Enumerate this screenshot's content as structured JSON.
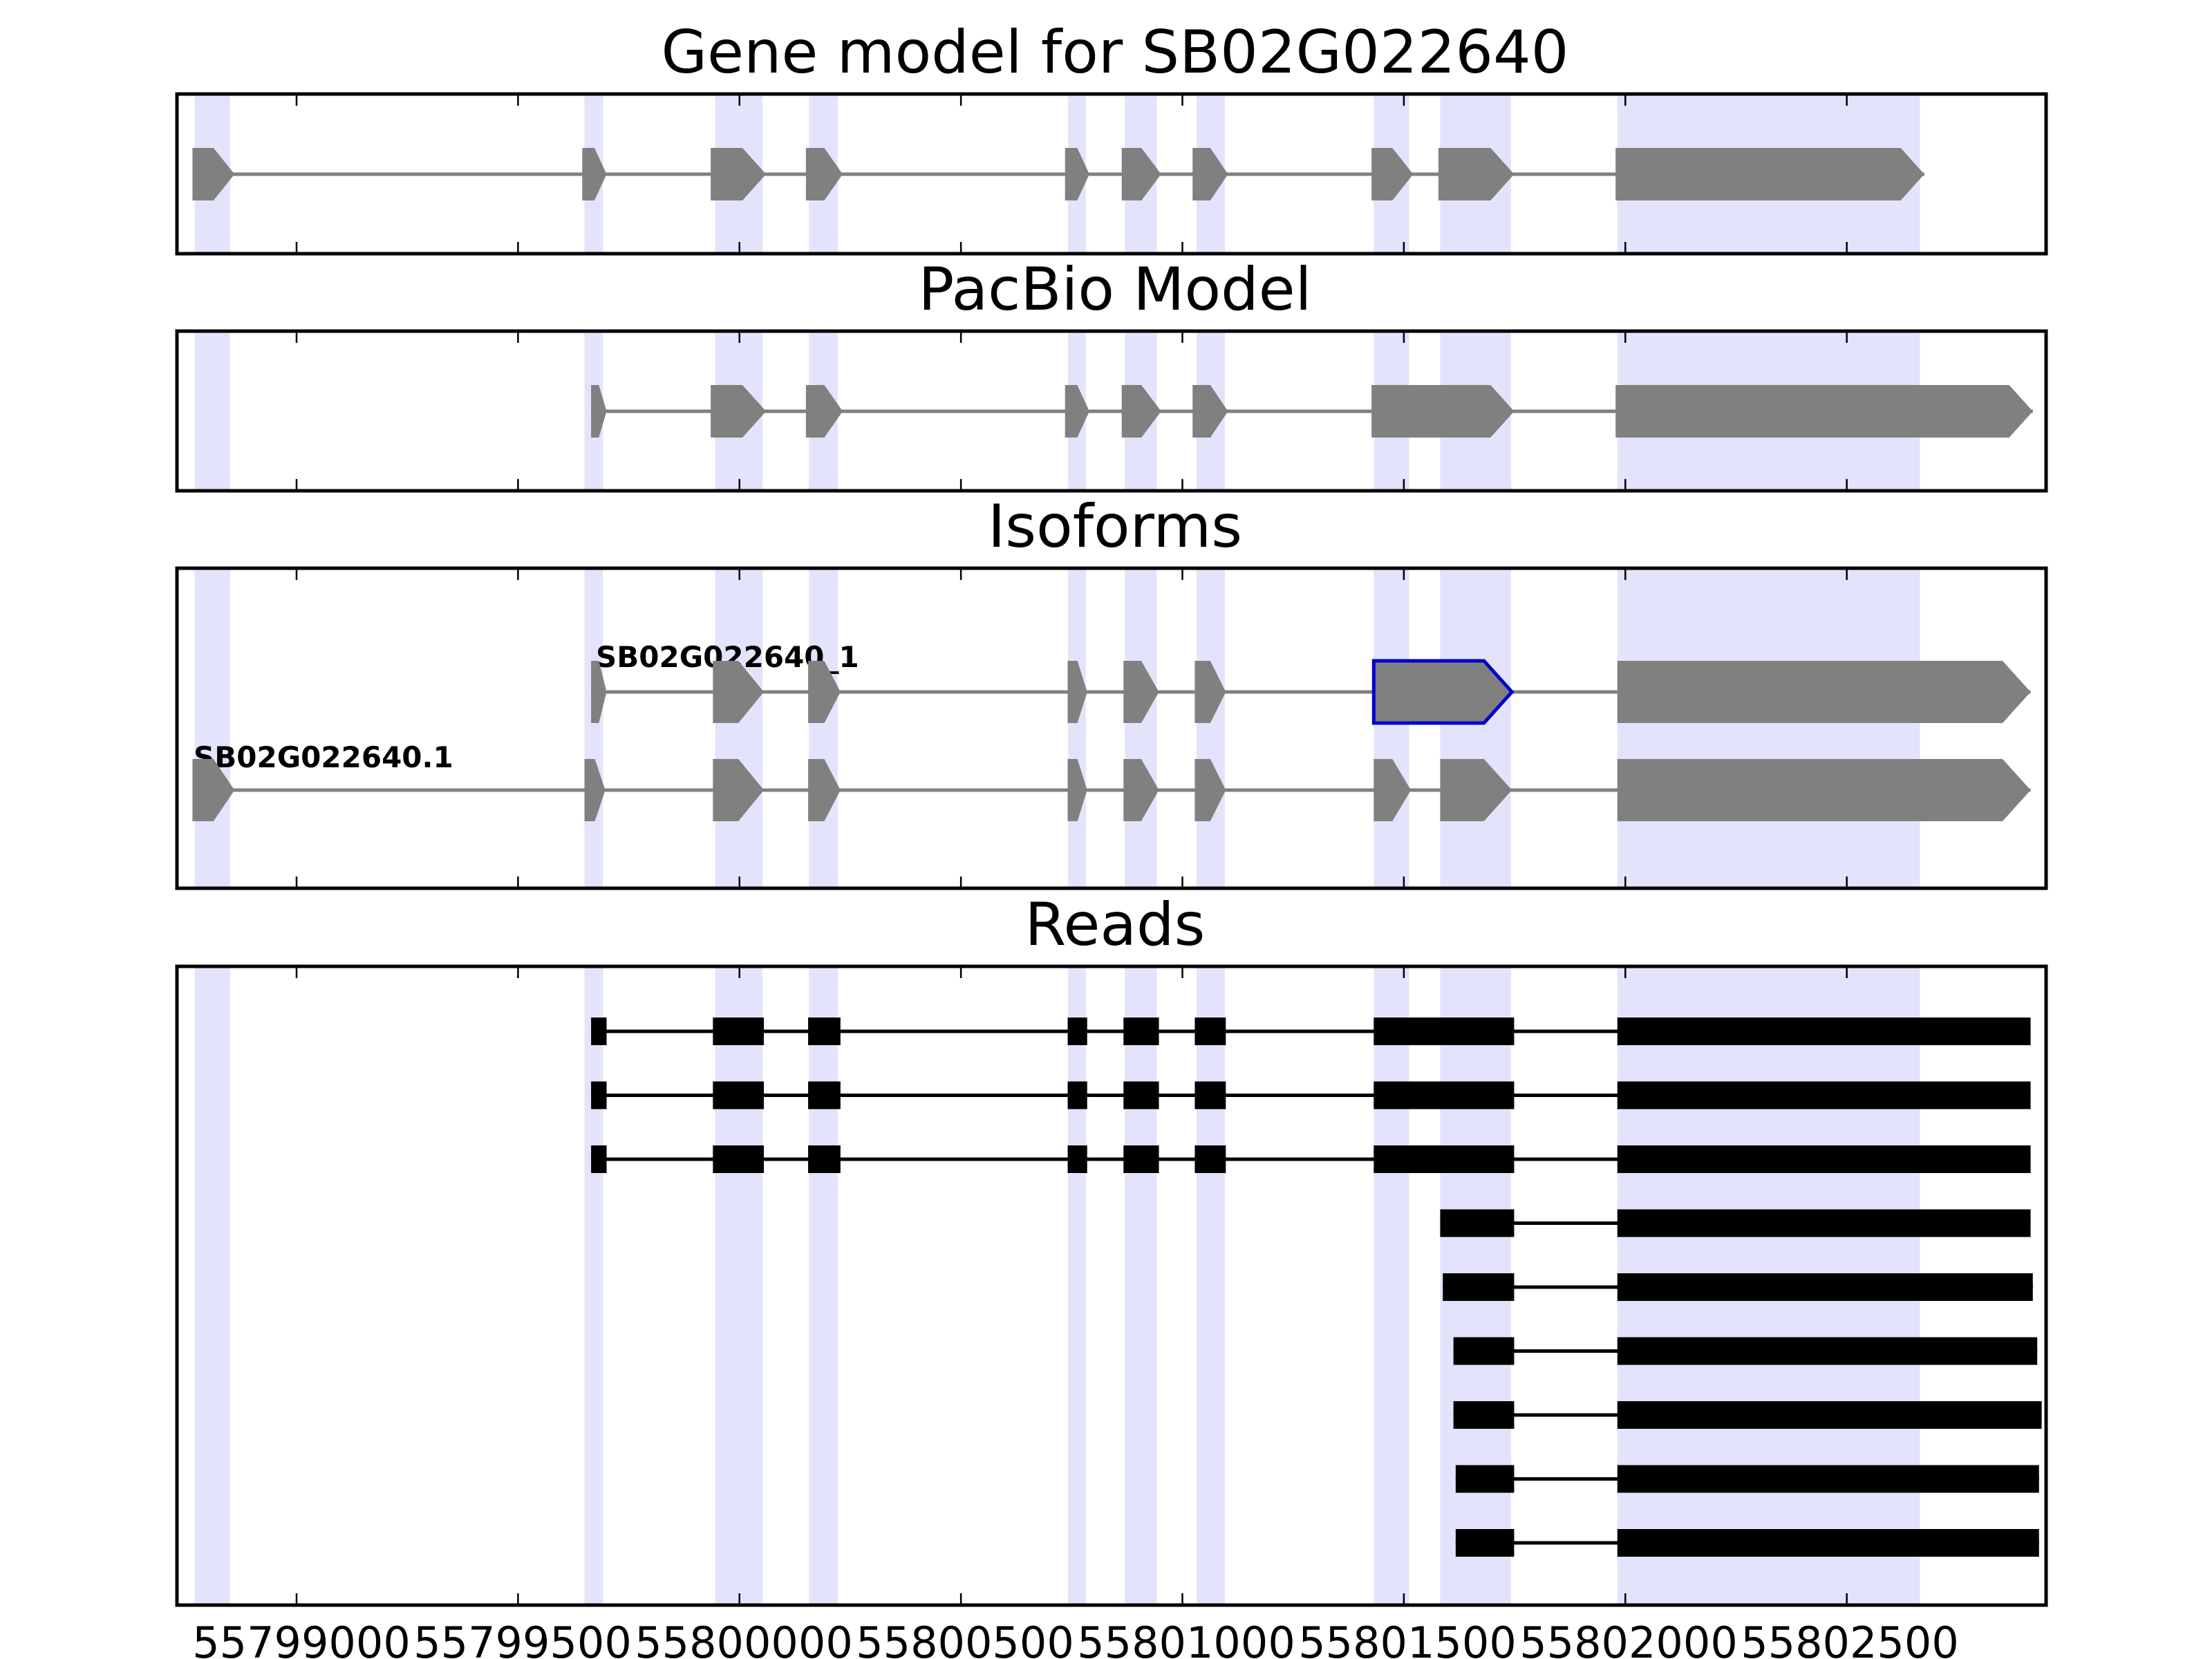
{
  "figure": {
    "panel_titles": {
      "gene_model": "Gene model for SB02G022640",
      "pacbio": "PacBio Model",
      "isoforms": "Isoforms",
      "reads": "Reads"
    },
    "isoform_labels": [
      "SB02G022640_1",
      "SB02G022640.1"
    ],
    "x_ticks": [
      "55799000",
      "55799500",
      "55800000",
      "55800500",
      "55801000",
      "55801500",
      "55802000",
      "55802500"
    ],
    "colors": {
      "exon_shade": "#e3e3fc",
      "gene_feature": "#808080",
      "read_feature": "#000000",
      "highlight_outline": "#0000cc"
    }
  },
  "chart_data": {
    "type": "gene-track",
    "xlim": [
      55798730,
      55802950
    ],
    "tick_values": [
      55799000,
      55799500,
      55800000,
      55800500,
      55801000,
      55801500,
      55802000,
      55802500
    ],
    "shaded_regions": [
      [
        55798770,
        55798850
      ],
      [
        55799650,
        55799692
      ],
      [
        55799945,
        55800052
      ],
      [
        55800157,
        55800222
      ],
      [
        55800742,
        55800782
      ],
      [
        55800870,
        55800942
      ],
      [
        55801032,
        55801096
      ],
      [
        55801432,
        55801512
      ],
      [
        55801582,
        55801742
      ],
      [
        55801982,
        55802665
      ]
    ],
    "gene_model": [
      [
        55798765,
        55798860
      ],
      [
        55799645,
        55799700
      ],
      [
        55799935,
        55800060
      ],
      [
        55800150,
        55800233
      ],
      [
        55800735,
        55800790
      ],
      [
        55800863,
        55800952
      ],
      [
        55801023,
        55801103
      ],
      [
        55801427,
        55801521
      ],
      [
        55801578,
        55801749
      ],
      [
        55801978,
        55802675
      ]
    ],
    "pacbio_model": [
      [
        55799665,
        55799700
      ],
      [
        55799935,
        55800060
      ],
      [
        55800150,
        55800233
      ],
      [
        55800735,
        55800790
      ],
      [
        55800863,
        55800952
      ],
      [
        55801023,
        55801103
      ],
      [
        55801427,
        55801749
      ],
      [
        55801978,
        55802920
      ]
    ],
    "isoforms": [
      {
        "exons": [
          [
            55799665,
            55799700
          ],
          [
            55799940,
            55800055
          ],
          [
            55800155,
            55800228
          ],
          [
            55800741,
            55800785
          ],
          [
            55800867,
            55800947
          ],
          [
            55801028,
            55801098
          ],
          [
            55801432,
            55801744
          ],
          [
            55801982,
            55802915
          ]
        ],
        "highlight_exon": 6
      },
      {
        "exons": [
          [
            55798765,
            55798860
          ],
          [
            55799650,
            55799697
          ],
          [
            55799940,
            55800055
          ],
          [
            55800155,
            55800228
          ],
          [
            55800741,
            55800785
          ],
          [
            55800867,
            55800947
          ],
          [
            55801028,
            55801098
          ],
          [
            55801432,
            55801516
          ],
          [
            55801582,
            55801744
          ],
          [
            55801982,
            55802915
          ]
        ],
        "highlight_exon": null
      }
    ],
    "reads": [
      [
        [
          55799665,
          55799700
        ],
        [
          55799940,
          55800055
        ],
        [
          55800155,
          55800228
        ],
        [
          55800741,
          55800785
        ],
        [
          55800867,
          55800947
        ],
        [
          55801028,
          55801098
        ],
        [
          55801432,
          55801749
        ],
        [
          55801982,
          55802915
        ]
      ],
      [
        [
          55799665,
          55799700
        ],
        [
          55799940,
          55800055
        ],
        [
          55800155,
          55800228
        ],
        [
          55800741,
          55800785
        ],
        [
          55800867,
          55800947
        ],
        [
          55801028,
          55801098
        ],
        [
          55801432,
          55801749
        ],
        [
          55801982,
          55802915
        ]
      ],
      [
        [
          55799665,
          55799700
        ],
        [
          55799940,
          55800055
        ],
        [
          55800155,
          55800228
        ],
        [
          55800741,
          55800785
        ],
        [
          55800867,
          55800947
        ],
        [
          55801028,
          55801098
        ],
        [
          55801432,
          55801749
        ],
        [
          55801982,
          55802915
        ]
      ],
      [
        [
          55801582,
          55801749
        ],
        [
          55801982,
          55802915
        ]
      ],
      [
        [
          55801588,
          55801749
        ],
        [
          55801982,
          55802920
        ]
      ],
      [
        [
          55801612,
          55801749
        ],
        [
          55801982,
          55802930
        ]
      ],
      [
        [
          55801612,
          55801749
        ],
        [
          55801982,
          55802940
        ]
      ],
      [
        [
          55801617,
          55801749
        ],
        [
          55801982,
          55802934
        ]
      ],
      [
        [
          55801617,
          55801749
        ],
        [
          55801982,
          55802934
        ]
      ]
    ]
  }
}
